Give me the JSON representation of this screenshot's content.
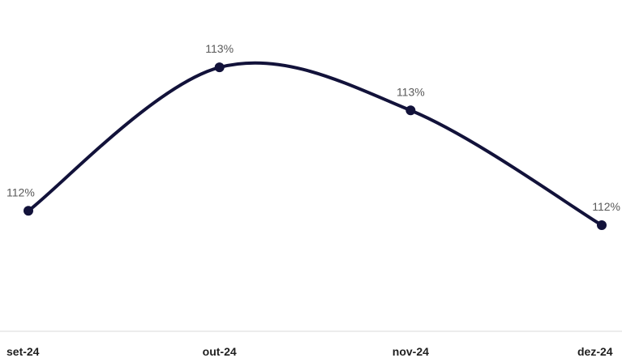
{
  "chart_data": {
    "type": "line",
    "categories": [
      "set-24",
      "out-24",
      "nov-24",
      "dez-24"
    ],
    "series": [
      {
        "values": [
          112.3,
          113.3,
          113.0,
          112.2
        ],
        "labels": [
          "112%",
          "113%",
          "113%",
          "112%"
        ]
      }
    ],
    "title": "",
    "xlabel": "",
    "ylabel": "",
    "ylim": [
      111.5,
      113.6
    ],
    "grid": false,
    "legend": "none",
    "smooth": true,
    "colors": {
      "line": "#12123a",
      "axis": "#d9d9d9",
      "tick_text": "#1f1f1f",
      "label_text": "#595959"
    }
  }
}
